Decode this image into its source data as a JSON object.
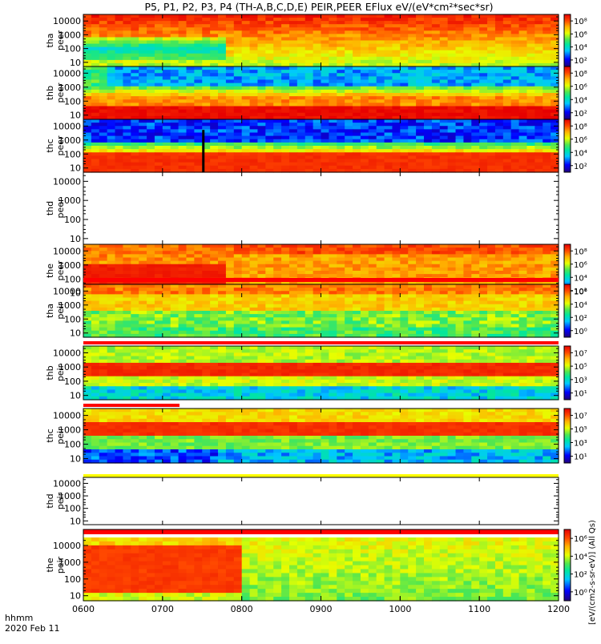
{
  "title": "P5, P1, P2, P3, P4 (TH-A,B,C,D,E) PEIR,PEER EFlux eV/(eV*cm²*sec*sr)",
  "bottom_label_line1": "hhmm",
  "bottom_label_line2": "2020 Feb 11",
  "cbar_vertical_label_top": "(All Qs)",
  "cbar_vertical_label_bottom": "[eV/(cm2-s-sr-eV)]  (All Qs)",
  "colors": {
    "scale": [
      "#22007a",
      "#0000ff",
      "#00c8ff",
      "#00e6a0",
      "#50e650",
      "#e6ff00",
      "#ffb400",
      "#ff4600",
      "#e60000",
      "#000000"
    ],
    "flag_bar": "#ff0000",
    "axis": "#000000"
  },
  "chart_data": {
    "type": "heatmap",
    "x_ticks": [
      "0600",
      "0700",
      "0800",
      "0900",
      "1000",
      "1100",
      "1200"
    ],
    "x_range": [
      "0600",
      "1200"
    ],
    "y_scale": "log",
    "y_ticks": [
      "10",
      "100",
      "1000",
      "10000"
    ],
    "y_range_eV": [
      5,
      30000
    ],
    "panels": [
      {
        "probe": "tha",
        "species": "peer",
        "ylabel": [
          "tha",
          "peer"
        ],
        "has_data": true,
        "cbar": [
          "10²",
          "10⁴",
          "10⁶",
          "10⁸"
        ]
      },
      {
        "probe": "thb",
        "species": "peer",
        "ylabel": [
          "thb",
          "peer"
        ],
        "has_data": true,
        "cbar": [
          "10²",
          "10⁴",
          "10⁶",
          "10⁸"
        ]
      },
      {
        "probe": "thc",
        "species": "peer",
        "ylabel": [
          "thc",
          "peer"
        ],
        "has_data": true,
        "cbar": [
          "10²",
          "10⁴",
          "10⁶",
          "10⁸"
        ]
      },
      {
        "probe": "thd",
        "species": "peer",
        "ylabel": [
          "thd",
          "peer"
        ],
        "has_data": false,
        "cbar": []
      },
      {
        "probe": "the",
        "species": "peer",
        "ylabel": [
          "the",
          "peer"
        ],
        "has_data": true,
        "cbar": [
          "10²",
          "10⁴",
          "10⁶",
          "10⁸"
        ]
      },
      {
        "probe": "tha",
        "species": "peir",
        "ylabel": [
          "tha",
          "peir"
        ],
        "has_data": true,
        "cbar": [
          "10⁰",
          "10²",
          "10⁴",
          "10⁶"
        ]
      },
      {
        "probe": "thb",
        "species": "peir",
        "ylabel": [
          "thb",
          "peir"
        ],
        "has_data": true,
        "cbar": [
          "10¹",
          "10³",
          "10⁵",
          "10⁷"
        ]
      },
      {
        "probe": "thc",
        "species": "peir",
        "ylabel": [
          "thc",
          "peir"
        ],
        "has_data": true,
        "cbar": [
          "10¹",
          "10³",
          "10⁵",
          "10⁷"
        ]
      },
      {
        "probe": "thd",
        "species": "peir",
        "ylabel": [
          "thd",
          "peir"
        ],
        "has_data": false,
        "cbar": []
      },
      {
        "probe": "the",
        "species": "peir",
        "ylabel": [
          "the",
          "peir"
        ],
        "has_data": true,
        "cbar": [
          "10⁰",
          "10²",
          "10⁴",
          "10⁶"
        ]
      }
    ]
  }
}
